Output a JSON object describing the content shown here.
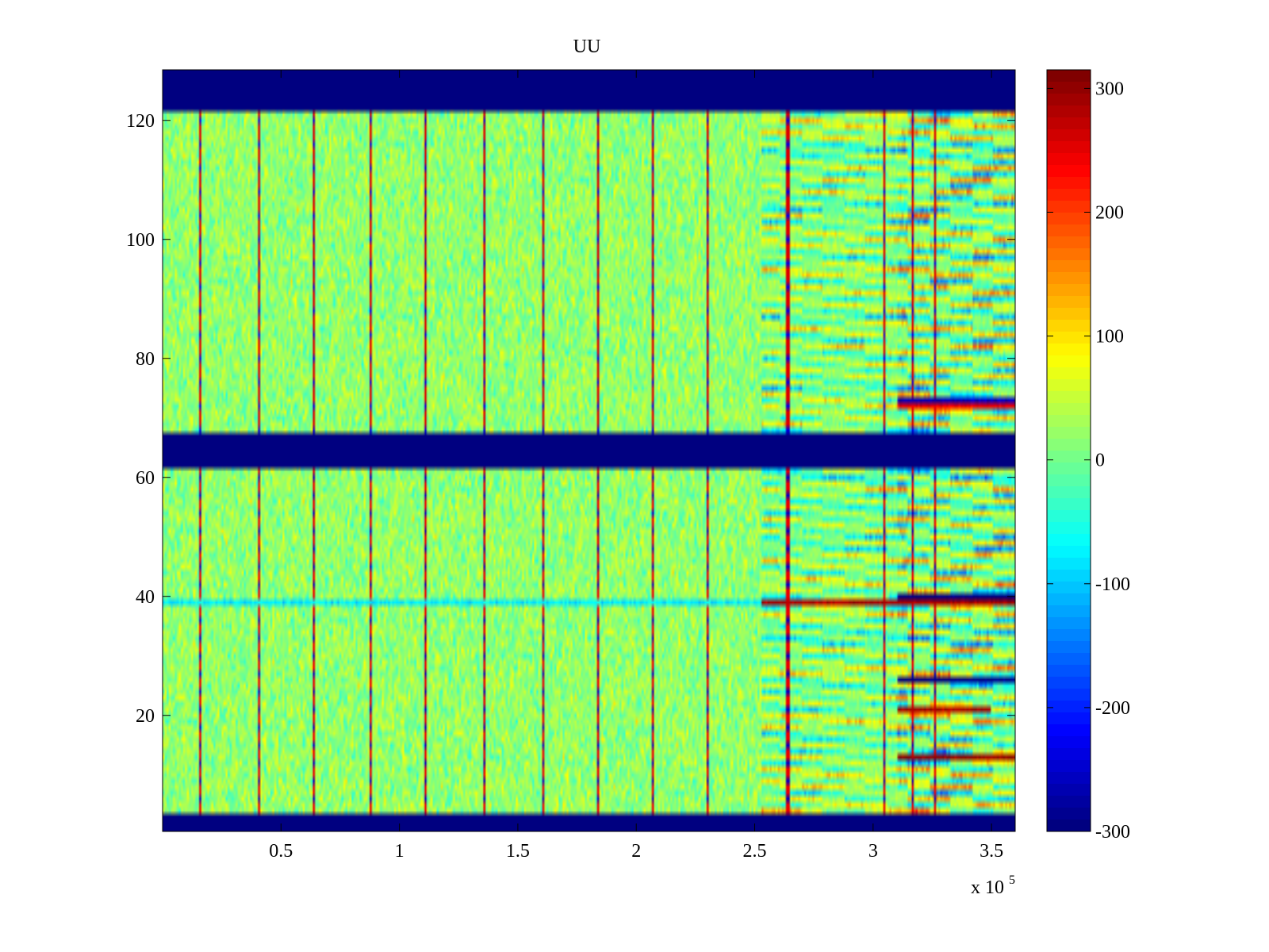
{
  "chart_data": {
    "type": "heatmap",
    "title": "UU",
    "xlabel": "",
    "ylabel": "",
    "x_exponent_label": "x 10",
    "x_exponent_power": "5",
    "xlim": [
      0,
      360000
    ],
    "ylim": [
      0.5,
      128.5
    ],
    "x_ticks": [
      50000,
      100000,
      150000,
      200000,
      250000,
      300000,
      350000
    ],
    "x_tick_labels": [
      "0.5",
      "1",
      "1.5",
      "2",
      "2.5",
      "3",
      "3.5"
    ],
    "y_ticks": [
      20,
      40,
      60,
      80,
      100,
      120
    ],
    "y_tick_labels": [
      "20",
      "40",
      "60",
      "80",
      "100",
      "120"
    ],
    "colorbar": {
      "colormap": "jet",
      "clim": [
        -300,
        315
      ],
      "ticks": [
        -300,
        -200,
        -100,
        0,
        100,
        200,
        300
      ],
      "tick_labels": [
        "-300",
        "-200",
        "-100",
        "0",
        "100",
        "200",
        "300"
      ]
    },
    "masked_rows": [
      {
        "from": 0.5,
        "to": 3.5,
        "value": -300
      },
      {
        "from": 61.5,
        "to": 67.5,
        "value": -300
      },
      {
        "from": 121.5,
        "to": 128.5,
        "value": -300
      }
    ],
    "vertical_spike_columns_x": [
      16000,
      41000,
      64000,
      88000,
      111000,
      136000,
      161000,
      184000,
      207000,
      230000,
      264000,
      305000,
      317000,
      326000
    ],
    "high_activity_start_x": 253000,
    "highlighted_row_events": [
      {
        "row": 39,
        "x_start": 253000,
        "x_end": 360000,
        "value": 290
      },
      {
        "row": 40,
        "x_start": 310000,
        "x_end": 360000,
        "value": -300
      },
      {
        "row": 26,
        "x_start": 310000,
        "x_end": 360000,
        "value": -300
      },
      {
        "row": 21,
        "x_start": 310000,
        "x_end": 350000,
        "value": 290
      },
      {
        "row": 13,
        "x_start": 310000,
        "x_end": 360000,
        "value": 300
      },
      {
        "row": 72,
        "x_start": 310000,
        "x_end": 360000,
        "value": 250
      },
      {
        "row": 73,
        "x_start": 310000,
        "x_end": 360000,
        "value": -260
      }
    ]
  }
}
